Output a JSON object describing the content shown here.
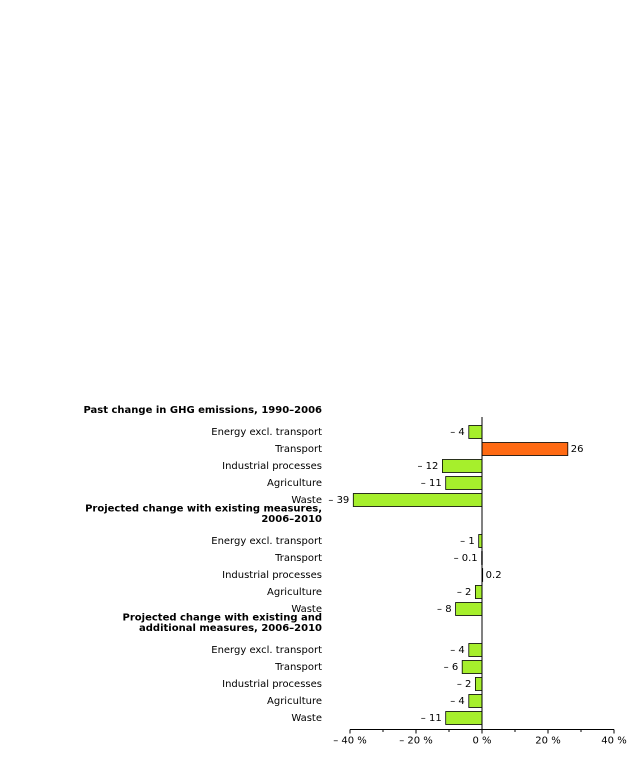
{
  "chart_data": {
    "type": "bar",
    "orientation": "horizontal",
    "xlim": [
      -40,
      40
    ],
    "x_ticks": [
      -40,
      -20,
      0,
      20,
      40
    ],
    "x_tick_labels": [
      "– 40 %",
      "– 20 %",
      "0 %",
      "20 %",
      "40 %"
    ],
    "grid": false,
    "groups": [
      {
        "title_lines": [
          "Past change in GHG emissions, 1990–2006"
        ],
        "categories": [
          "Energy excl. transport",
          "Transport",
          "Industrial processes",
          "Agriculture",
          "Waste"
        ],
        "values": [
          -4,
          26,
          -12,
          -11,
          -39
        ],
        "value_labels": [
          "– 4",
          "26",
          "– 12",
          "– 11",
          "– 39"
        ]
      },
      {
        "title_lines": [
          "Projected change with existing measures,",
          "2006–2010"
        ],
        "categories": [
          "Energy excl. transport",
          "Transport",
          "Industrial processes",
          "Agriculture",
          "Waste"
        ],
        "values": [
          -1,
          -0.1,
          0.2,
          -2,
          -8
        ],
        "value_labels": [
          "– 1",
          "– 0.1",
          "0.2",
          "– 2",
          "– 8"
        ]
      },
      {
        "title_lines": [
          "Projected change with existing and",
          "additional measures, 2006–2010"
        ],
        "categories": [
          "Energy excl. transport",
          "Transport",
          "Industrial processes",
          "Agriculture",
          "Waste"
        ],
        "values": [
          -4,
          -6,
          -2,
          -4,
          -11
        ],
        "value_labels": [
          "– 4",
          "– 6",
          "– 2",
          "– 4",
          "– 11"
        ]
      }
    ],
    "colors": {
      "bar_default": "#a6ef2c",
      "bar_highlight": "#ff6a13",
      "bar_stroke": "#000000"
    },
    "highlight": [
      {
        "group": 0,
        "category": 1
      }
    ]
  }
}
